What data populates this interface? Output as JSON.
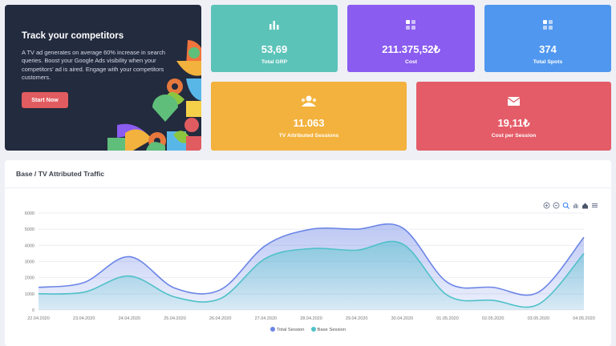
{
  "promo": {
    "title": "Track your competitors",
    "text": "A TV ad generates on average 60% increase in search queries. Boost your Google Ads visibility when your competitors' ad is aired. Engage with your competitors customers.",
    "button": "Start Now"
  },
  "cards": [
    {
      "value": "53,69",
      "label": "Total GRP",
      "color": "#5cc3b9",
      "icon": "bar-chart-icon"
    },
    {
      "value": "211.375,52₺",
      "label": "Cost",
      "color": "#8a5cf0",
      "icon": "grid-icon"
    },
    {
      "value": "374",
      "label": "Total Spots",
      "color": "#5097ef",
      "icon": "grid-icon"
    },
    {
      "value": "11.063",
      "label": "TV Attributed Sessions",
      "color": "#f3b23d",
      "icon": "user-group-icon"
    },
    {
      "value": "19,11₺",
      "label": "Cost per Session",
      "color": "#e45c67",
      "icon": "envelope-icon"
    }
  ],
  "panel": {
    "title": "Base / TV Attributed Traffic"
  },
  "chart_data": {
    "type": "area",
    "x": [
      "22.04.2020",
      "23.04.2020",
      "24.04.2020",
      "25.04.2020",
      "26.04.2020",
      "27.04.2020",
      "28.04.2020",
      "29.04.2020",
      "30.04.2020",
      "01.05.2020",
      "02.05.2020",
      "03.05.2020",
      "04.05.2020"
    ],
    "series": [
      {
        "name": "Total Session",
        "color": "#6b85e6",
        "values": [
          1400,
          1700,
          3300,
          1350,
          1250,
          4000,
          5000,
          5000,
          5100,
          1700,
          1400,
          1100,
          4500
        ]
      },
      {
        "name": "Base Session",
        "color": "#4fc1c9",
        "values": [
          1000,
          1100,
          2100,
          800,
          700,
          3200,
          3800,
          3700,
          4100,
          900,
          600,
          350,
          3500
        ]
      }
    ],
    "ylim": [
      0,
      6000
    ],
    "yticks": [
      0,
      1000,
      2000,
      3000,
      4000,
      5000,
      6000
    ],
    "legend_position": "bottom"
  }
}
